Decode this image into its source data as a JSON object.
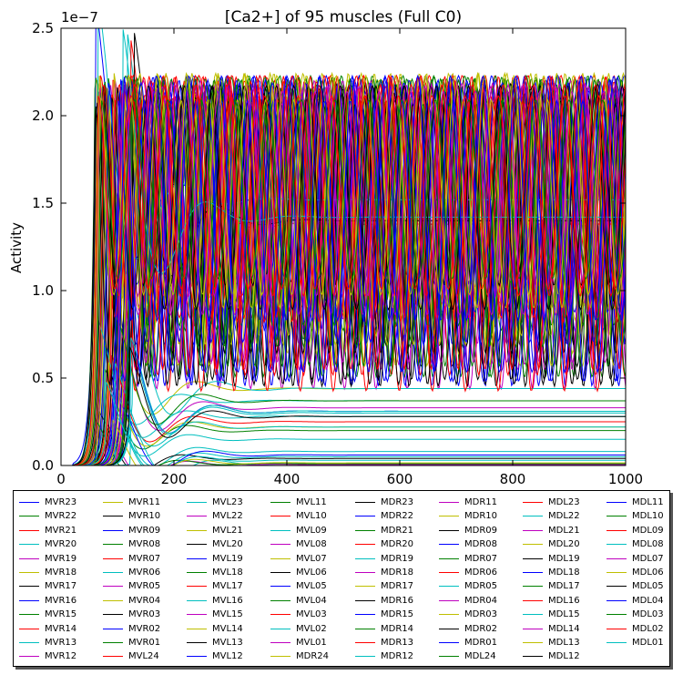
{
  "chart_data": {
    "type": "line",
    "title": "[Ca2+] of 95 muscles (Full C0)",
    "xlabel": "",
    "ylabel": "Activity",
    "y_offset_label": "1e−7",
    "xlim": [
      0,
      1000
    ],
    "ylim": [
      0,
      2.5e-07
    ],
    "x_ticks": [
      0,
      200,
      400,
      600,
      800,
      1000
    ],
    "x_tick_labels": [
      "0",
      "200",
      "400",
      "600",
      "800",
      "1000"
    ],
    "y_ticks": [
      0,
      5e-08,
      1e-07,
      1.5e-07,
      2e-07,
      2.5e-07
    ],
    "y_tick_labels": [
      "0.0",
      "0.5",
      "1.0",
      "1.5",
      "2.0",
      "2.5"
    ],
    "grid": false,
    "legend_placement": "bottom",
    "color_cycle": [
      "#0000ff",
      "#008000",
      "#ff0000",
      "#00bfbf",
      "#bf00bf",
      "#bfbf00",
      "#000000"
    ],
    "series_names": [
      "MVR23",
      "MVR22",
      "MVR21",
      "MVR20",
      "MVR19",
      "MVR18",
      "MVR17",
      "MVR16",
      "MVR15",
      "MVR14",
      "MVR13",
      "MVR12",
      "MVR11",
      "MVR10",
      "MVR09",
      "MVR08",
      "MVR07",
      "MVR06",
      "MVR05",
      "MVR04",
      "MVR03",
      "MVR02",
      "MVR01",
      "MVL24",
      "MVL23",
      "MVL22",
      "MVL21",
      "MVL20",
      "MVL19",
      "MVL18",
      "MVL17",
      "MVL16",
      "MVL15",
      "MVL14",
      "MVL13",
      "MVL12",
      "MVL11",
      "MVL10",
      "MVL09",
      "MVL08",
      "MVL07",
      "MVL06",
      "MVL05",
      "MVL04",
      "MVL03",
      "MVL02",
      "MVL01",
      "MDR24",
      "MDR23",
      "MDR22",
      "MDR21",
      "MDR20",
      "MDR19",
      "MDR18",
      "MDR17",
      "MDR16",
      "MDR15",
      "MDR14",
      "MDR13",
      "MDR12",
      "MDR11",
      "MDR10",
      "MDR09",
      "MDR08",
      "MDR07",
      "MDR06",
      "MDR05",
      "MDR04",
      "MDR03",
      "MDR02",
      "MDR01",
      "MDL24",
      "MDL23",
      "MDL22",
      "MDL21",
      "MDL20",
      "MDL19",
      "MDL18",
      "MDL17",
      "MDL16",
      "MDL15",
      "MDL14",
      "MDL13",
      "MDL12",
      "MDL11",
      "MDL10",
      "MDL09",
      "MDL08",
      "MDL07",
      "MDL06",
      "MDL05",
      "MDL04",
      "MDL03",
      "MDL02",
      "MDL01"
    ],
    "series_approx": {
      "onset_x_range": [
        60,
        130
      ],
      "oscillating_peak_y": 2.2e-07,
      "oscillating_trough_y_range": [
        4e-08,
        1.1e-07
      ],
      "oscillation_period_x_range": [
        45,
        60
      ],
      "plateau_levels_y": [
        1.52e-07,
        1.45e-07,
        1.42e-07,
        1.4e-07,
        1.38e-07,
        4.4e-08,
        4e-08,
        3.7e-08,
        3.3e-08,
        3.1e-08,
        3e-08,
        2.9e-08,
        2.8e-08,
        2.5e-08,
        2.2e-08,
        2e-08,
        1.5e-08,
        8e-09,
        6e-09,
        5e-09,
        4e-09,
        3e-09,
        2e-09,
        1.5e-09,
        1e-09,
        5e-10
      ]
    }
  }
}
